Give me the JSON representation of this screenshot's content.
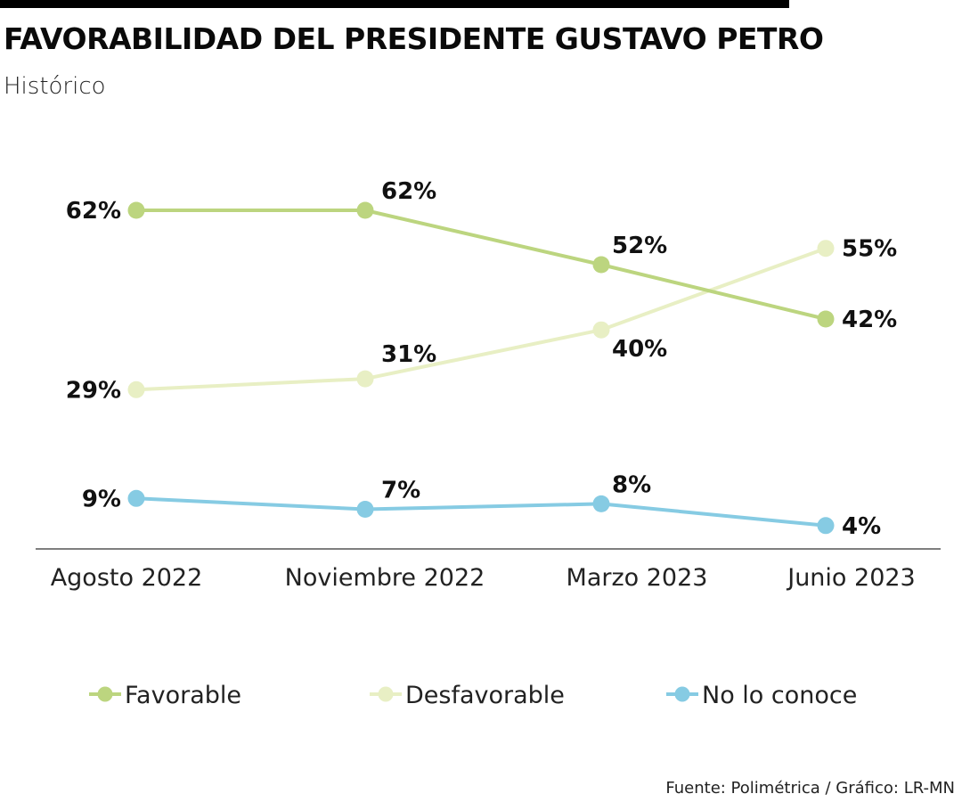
{
  "header": {
    "title": "FAVORABILIDAD DEL PRESIDENTE GUSTAVO PETRO",
    "subtitle": "Histórico"
  },
  "footer": {
    "source": "Fuente: Polimétrica / Gráfico: LR-MN"
  },
  "chart_data": {
    "type": "line",
    "title": "FAVORABILIDAD DEL PRESIDENTE GUSTAVO PETRO",
    "subtitle": "Histórico",
    "xlabel": "",
    "ylabel": "",
    "categories": [
      "Agosto 2022",
      "Noviembre 2022",
      "Marzo 2023",
      "Junio 2023"
    ],
    "grid": false,
    "legend_position": "bottom",
    "unit": "%",
    "series": [
      {
        "name": "Favorable",
        "color": "#bcd57f",
        "values": [
          62,
          62,
          52,
          42
        ]
      },
      {
        "name": "Desfavorable",
        "color": "#e8efc4",
        "values": [
          29,
          31,
          40,
          55
        ]
      },
      {
        "name": "No lo conoce",
        "color": "#86cbe3",
        "values": [
          9,
          7,
          8,
          4
        ]
      }
    ],
    "source": "Fuente: Polimétrica / Gráfico: LR-MN"
  }
}
